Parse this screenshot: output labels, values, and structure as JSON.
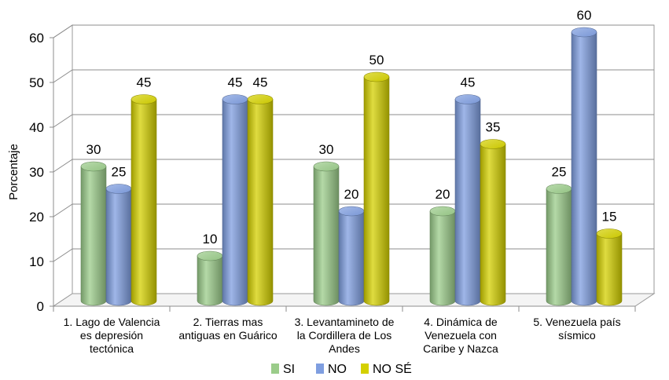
{
  "chart_data": {
    "type": "bar",
    "ylabel": "Porcentaje",
    "ylim": [
      0,
      60
    ],
    "yticks": [
      0,
      10,
      20,
      30,
      40,
      50,
      60
    ],
    "grid": true,
    "legend_position": "bottom",
    "categories": [
      [
        "1. Lago de Valencia",
        "es depresión",
        "tectónica"
      ],
      [
        "2. Tierras mas",
        "antiguas en Guárico"
      ],
      [
        "3. Levantamineto de",
        "la Cordillera de Los",
        "Andes"
      ],
      [
        "4. Dinámica de",
        "Venezuela con",
        "Caribe y Nazca"
      ],
      [
        "5. Venezuela país",
        "sísmico"
      ]
    ],
    "series": [
      {
        "name": "SI",
        "color": "#9bcc8a",
        "values": [
          30,
          10,
          30,
          20,
          25
        ]
      },
      {
        "name": "NO",
        "color": "#7f9ee0",
        "values": [
          25,
          45,
          20,
          45,
          60
        ]
      },
      {
        "name": "NO SÉ",
        "color": "#d4d000",
        "values": [
          45,
          45,
          50,
          35,
          15
        ]
      }
    ]
  }
}
